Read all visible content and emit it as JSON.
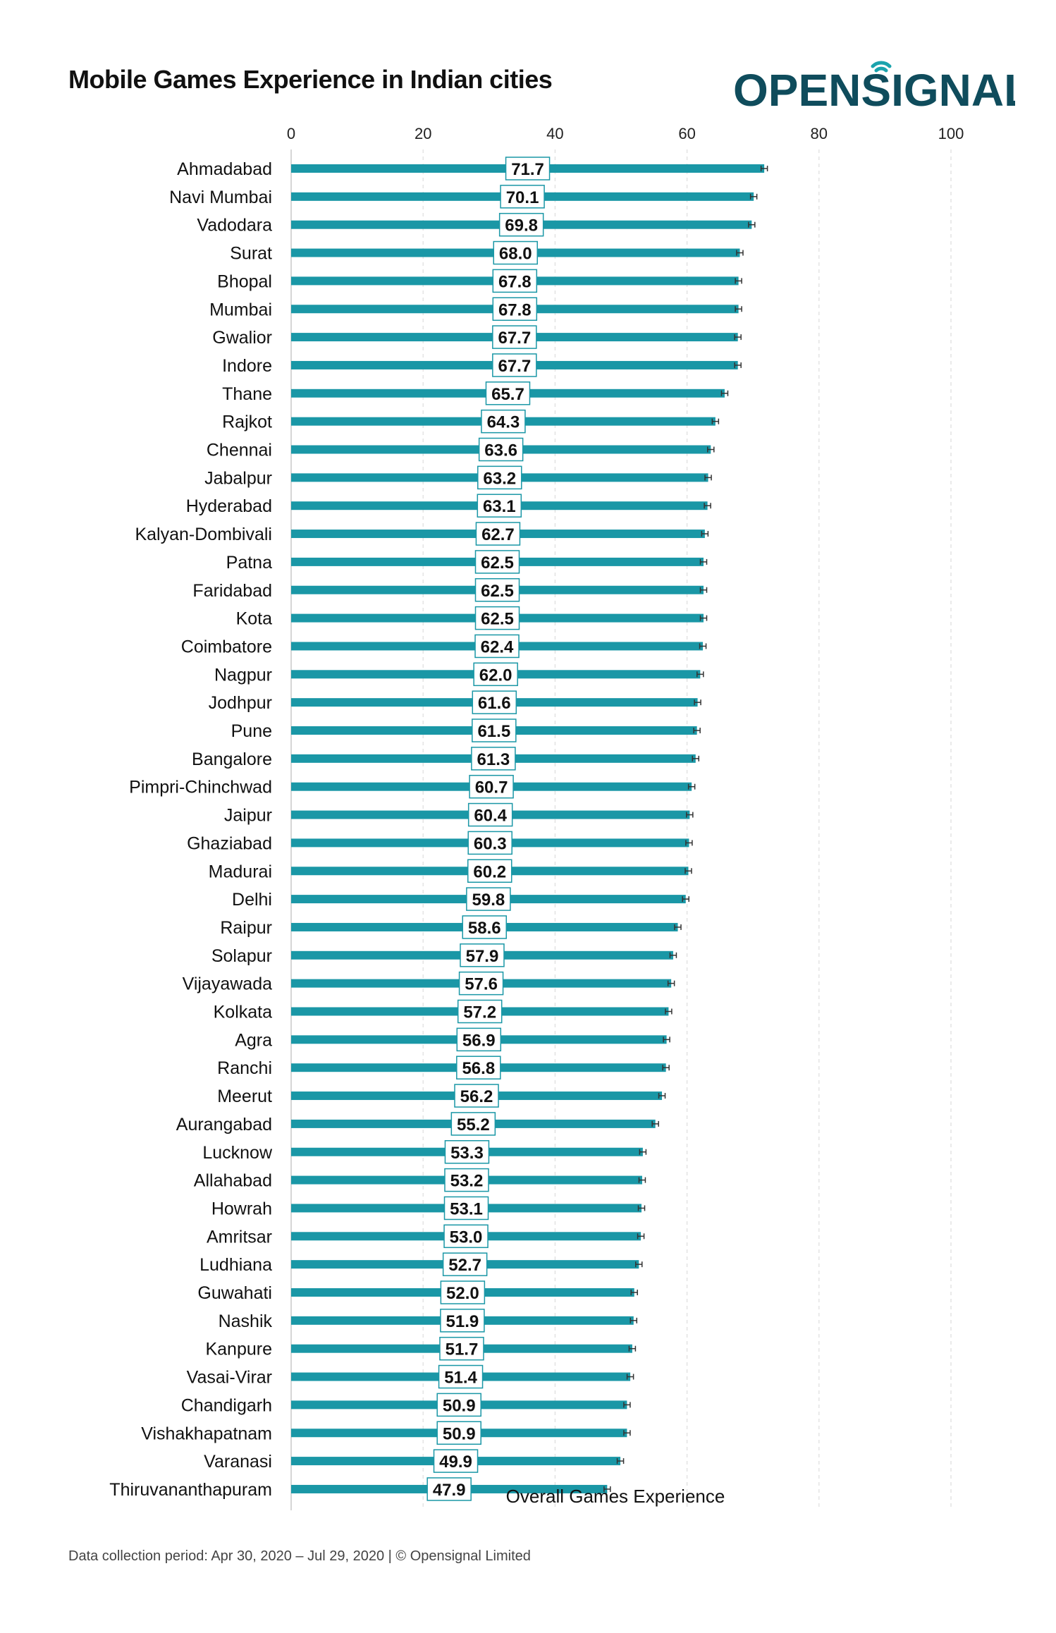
{
  "brand": {
    "logo_text": "OPENSIGNAL",
    "logo_color": "#0f4c5c",
    "logo_signal_color": "#1aa3ad"
  },
  "footer": "Data collection period: Apr 30, 2020 – Jul 29, 2020 | © Opensignal Limited",
  "chart_data": {
    "type": "bar",
    "orientation": "horizontal",
    "title": "Mobile Games Experience in Indian cities",
    "xlabel": "Overall Games Experience",
    "ylabel": "",
    "xlim": [
      0,
      100
    ],
    "x_ticks": [
      0,
      20,
      40,
      60,
      80,
      100
    ],
    "x_axis_position": "top",
    "grid": "vertical dashed",
    "bar_color": "#1a97a6",
    "error_bars": true,
    "categories": [
      "Ahmadabad",
      "Navi Mumbai",
      "Vadodara",
      "Surat",
      "Bhopal",
      "Mumbai",
      "Gwalior",
      "Indore",
      "Thane",
      "Rajkot",
      "Chennai",
      "Jabalpur",
      "Hyderabad",
      "Kalyan-Dombivali",
      "Patna",
      "Faridabad",
      "Kota",
      "Coimbatore",
      "Nagpur",
      "Jodhpur",
      "Pune",
      "Bangalore",
      "Pimpri-Chinchwad",
      "Jaipur",
      "Ghaziabad",
      "Madurai",
      "Delhi",
      "Raipur",
      "Solapur",
      "Vijayawada",
      "Kolkata",
      "Agra",
      "Ranchi",
      "Meerut",
      "Aurangabad",
      "Lucknow",
      "Allahabad",
      "Howrah",
      "Amritsar",
      "Ludhiana",
      "Guwahati",
      "Nashik",
      "Kanpure",
      "Vasai-Virar",
      "Chandigarh",
      "Vishakhapatnam",
      "Varanasi",
      "Thiruvananthapuram"
    ],
    "values": [
      71.7,
      70.1,
      69.8,
      68.0,
      67.8,
      67.8,
      67.7,
      67.7,
      65.7,
      64.3,
      63.6,
      63.2,
      63.1,
      62.7,
      62.5,
      62.5,
      62.5,
      62.4,
      62.0,
      61.6,
      61.5,
      61.3,
      60.7,
      60.4,
      60.3,
      60.2,
      59.8,
      58.6,
      57.9,
      57.6,
      57.2,
      56.9,
      56.8,
      56.2,
      55.2,
      53.3,
      53.2,
      53.1,
      53.0,
      52.7,
      52.0,
      51.9,
      51.7,
      51.4,
      50.9,
      50.9,
      49.9,
      47.9
    ],
    "value_labels": [
      "71.7",
      "70.1",
      "69.8",
      "68.0",
      "67.8",
      "67.8",
      "67.7",
      "67.7",
      "65.7",
      "64.3",
      "63.6",
      "63.2",
      "63.1",
      "62.7",
      "62.5",
      "62.5",
      "62.5",
      "62.4",
      "62.0",
      "61.6",
      "61.5",
      "61.3",
      "60.7",
      "60.4",
      "60.3",
      "60.2",
      "59.8",
      "58.6",
      "57.9",
      "57.6",
      "57.2",
      "56.9",
      "56.8",
      "56.2",
      "55.2",
      "53.3",
      "53.2",
      "53.1",
      "53.0",
      "52.7",
      "52.0",
      "51.9",
      "51.7",
      "51.4",
      "50.9",
      "50.9",
      "49.9",
      "47.9"
    ]
  }
}
